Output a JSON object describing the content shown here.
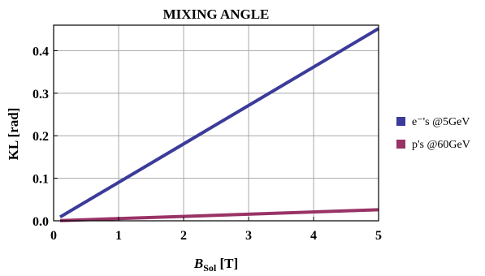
{
  "chart_data": {
    "type": "line",
    "title": "MIXING ANGLE",
    "ylabel": "KL [rad]",
    "xlabel_main": "B",
    "xlabel_sub": "Sol",
    "xlabel_unit": " [T]",
    "xlim": [
      0,
      5
    ],
    "ylim": [
      0,
      0.46
    ],
    "x_ticks": [
      0,
      1,
      2,
      3,
      4,
      5
    ],
    "x_tick_labels": [
      "0",
      "1",
      "2",
      "3",
      "4",
      "5"
    ],
    "y_ticks": [
      0.0,
      0.1,
      0.2,
      0.3,
      0.4
    ],
    "y_tick_labels": [
      "0.0",
      "0.1",
      "0.2",
      "0.3",
      "0.4"
    ],
    "grid": true,
    "legend_position": "right",
    "series": [
      {
        "name": "e⁻'s @5GeV",
        "color": "#3b3b9a",
        "x": [
          0.1,
          5.0
        ],
        "y": [
          0.009,
          0.452
        ]
      },
      {
        "name": "p's @60GeV",
        "color": "#993366",
        "x": [
          0.1,
          5.0
        ],
        "y": [
          0.0005,
          0.026
        ]
      }
    ]
  }
}
